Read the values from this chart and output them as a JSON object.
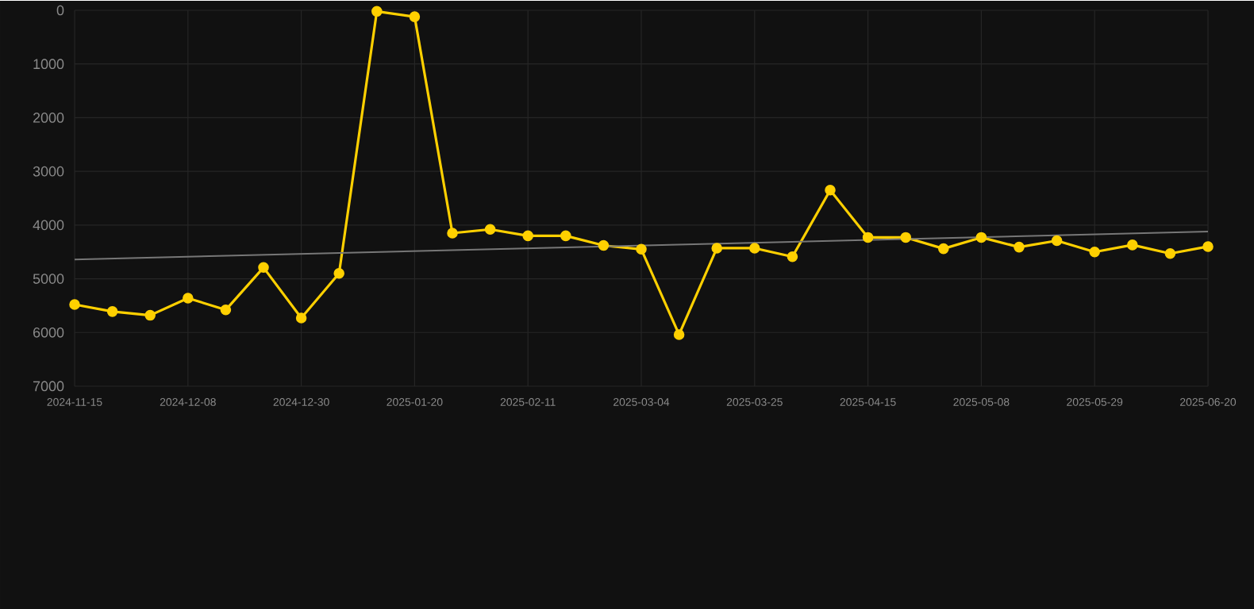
{
  "chart_data": {
    "type": "line",
    "categories": [
      "2024-11-15",
      null,
      null,
      "2024-12-08",
      null,
      null,
      "2024-12-30",
      null,
      null,
      "2025-01-20",
      null,
      null,
      "2025-02-11",
      null,
      null,
      "2025-03-04",
      null,
      null,
      "2025-03-25",
      null,
      null,
      "2025-04-15",
      null,
      null,
      "2025-05-08",
      null,
      null,
      "2025-05-29",
      null,
      null,
      "2025-06-20"
    ],
    "series": [
      {
        "color": "#ffd000",
        "marker": "circle",
        "values": [
          5480,
          5610,
          5680,
          5360,
          5580,
          4790,
          5730,
          4900,
          20,
          120,
          4150,
          4080,
          4200,
          4200,
          4380,
          4450,
          6040,
          4430,
          4430,
          4590,
          3350,
          4230,
          4230,
          4440,
          4230,
          4410,
          4290,
          4500,
          4370,
          4530,
          4400
        ]
      },
      {
        "type": "line",
        "color": "#777777",
        "marker": "none",
        "values": [
          4640,
          null,
          null,
          null,
          null,
          null,
          null,
          null,
          null,
          null,
          null,
          null,
          null,
          null,
          null,
          null,
          null,
          null,
          null,
          null,
          null,
          null,
          null,
          null,
          null,
          null,
          null,
          null,
          null,
          null,
          4120
        ]
      }
    ],
    "ylim": [
      7000,
      0
    ],
    "yticks": [
      0,
      1000,
      2000,
      3000,
      4000,
      5000,
      6000,
      7000
    ],
    "grid": true,
    "legend": false,
    "line_style": "solid"
  }
}
